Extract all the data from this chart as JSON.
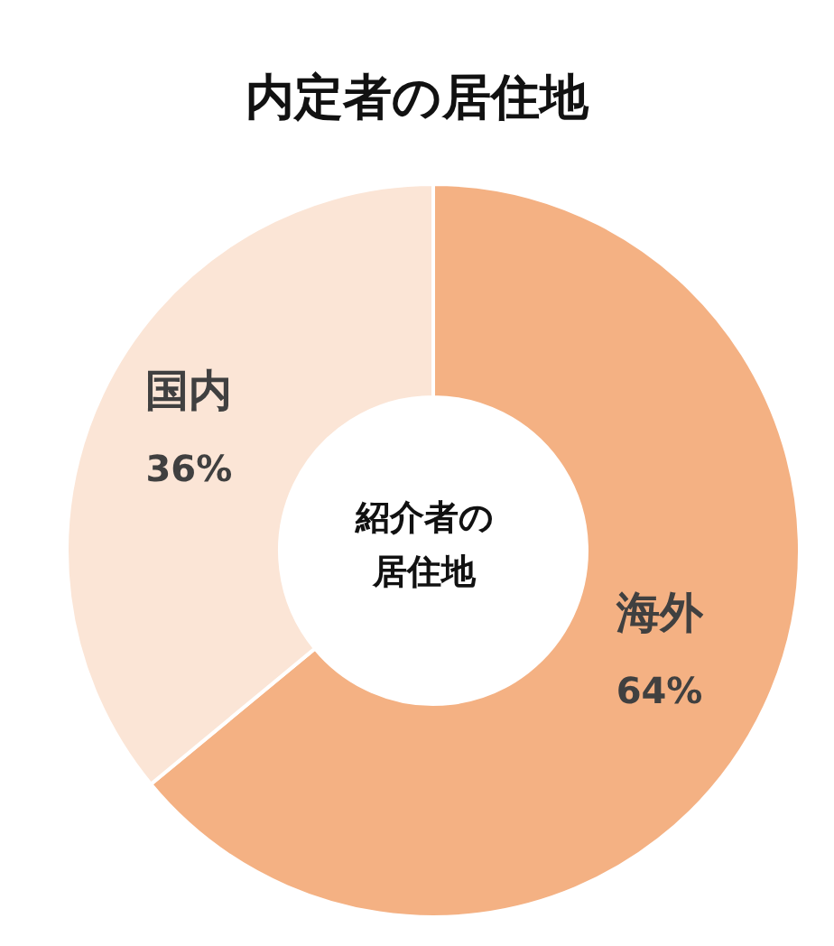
{
  "chart_data": {
    "type": "donut",
    "title": "内定者の居住地",
    "categories": [
      "海外",
      "国内"
    ],
    "values": [
      64,
      36
    ],
    "value_labels": [
      "64%",
      "36%"
    ],
    "colors": [
      "#f4b183",
      "#fbe5d6"
    ],
    "annotations": [
      "紹介者の居住地"
    ]
  }
}
